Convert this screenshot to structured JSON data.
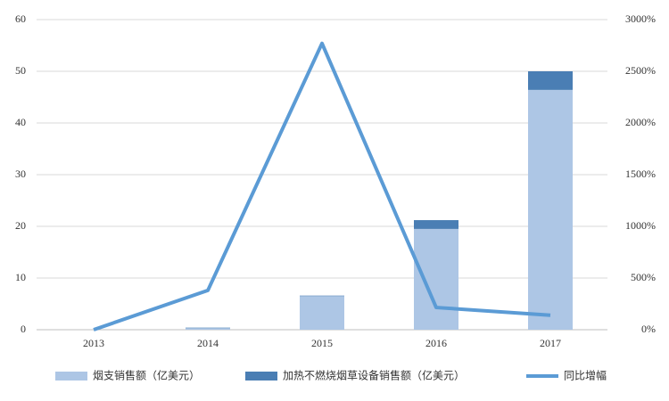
{
  "chart_data": {
    "type": "bar",
    "categories": [
      "2013",
      "2014",
      "2015",
      "2016",
      "2017"
    ],
    "series": [
      {
        "name": "烟支销售额（亿美元）",
        "type": "bar",
        "color": "#adc6e5",
        "values": [
          0,
          0.3,
          6.5,
          19.5,
          46.4
        ]
      },
      {
        "name": "加热不燃烧烟草设备销售额（亿美元）",
        "type": "bar",
        "color": "#4a7eb4",
        "values": [
          0,
          0.1,
          0.1,
          1.7,
          3.6
        ]
      },
      {
        "name": "同比增幅",
        "type": "line",
        "axis": "y2",
        "color": "#5b9bd5",
        "values": [
          0,
          380,
          2770,
          215,
          140
        ]
      }
    ],
    "stacked": true,
    "ylim": [
      0,
      60
    ],
    "yticks": [
      0,
      10,
      20,
      30,
      40,
      50,
      60
    ],
    "y2lim": [
      0,
      3000
    ],
    "y2ticks": [
      {
        "value": 0,
        "label": "0%"
      },
      {
        "value": 500,
        "label": "500%"
      },
      {
        "value": 1000,
        "label": "1000%"
      },
      {
        "value": 1500,
        "label": "1500%"
      },
      {
        "value": 2000,
        "label": "2000%"
      },
      {
        "value": 2500,
        "label": "2500%"
      },
      {
        "value": 3000,
        "label": "3000%"
      }
    ],
    "grid": true,
    "legend": "bottom"
  }
}
